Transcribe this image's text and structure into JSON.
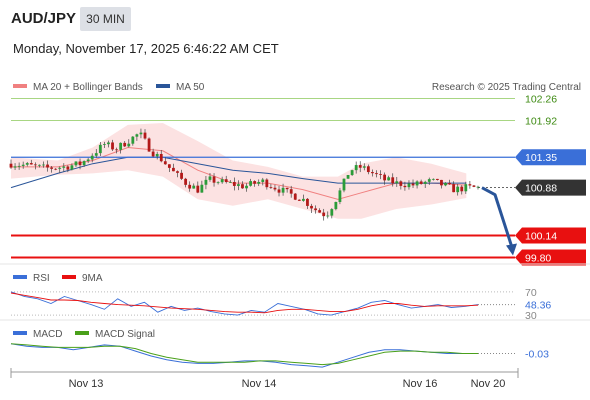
{
  "header": {
    "symbol": "AUD/JPY",
    "timeframe_button": "30 MIN",
    "timestamp": "Monday, November 17, 2025 6:46:22 AM CET"
  },
  "chart_data": [
    {
      "type": "candlestick",
      "panel": "price",
      "legend": [
        {
          "name": "MA 20 + Bollinger Bands",
          "color": "#f08080"
        },
        {
          "name": "MA 50",
          "color": "#2a5599"
        }
      ],
      "credit": "Research © 2025 Trading Central",
      "ylim": [
        99.73,
        102.39
      ],
      "levels": [
        {
          "value": 102.26,
          "label": "102.26",
          "kind": "target",
          "color": "#8cc85a"
        },
        {
          "value": 101.92,
          "label": "101.92",
          "kind": "target",
          "color": "#8cc85a"
        },
        {
          "value": 101.35,
          "label": "101.35",
          "kind": "pivot",
          "color": "#3a6fd8"
        },
        {
          "value": 100.88,
          "label": "100.88",
          "kind": "last_price",
          "color": "#333333"
        },
        {
          "value": 100.14,
          "label": "100.14",
          "kind": "support",
          "color": "#e81010"
        },
        {
          "value": 99.8,
          "label": "99.80",
          "kind": "support",
          "color": "#e81010"
        }
      ],
      "arrow": {
        "direction": "down",
        "from_value": 100.88,
        "to_value": 99.8,
        "color": "#2a5599"
      },
      "x_ticks": [
        "Nov 13",
        "Nov 14",
        "Nov 16",
        "Nov 20"
      ],
      "close_path": [
        [
          0,
          101.25
        ],
        [
          3,
          101.22
        ],
        [
          6,
          101.18
        ],
        [
          9,
          101.2
        ],
        [
          12,
          101.25
        ],
        [
          16,
          101.55
        ],
        [
          18,
          101.48
        ],
        [
          20,
          101.6
        ],
        [
          22,
          101.72
        ],
        [
          24,
          101.45
        ],
        [
          26,
          101.3
        ],
        [
          28,
          101.1
        ],
        [
          30,
          100.95
        ],
        [
          32,
          100.85
        ],
        [
          34,
          101.0
        ],
        [
          37,
          100.95
        ],
        [
          40,
          100.9
        ],
        [
          43,
          100.98
        ],
        [
          46,
          100.85
        ],
        [
          50,
          100.7
        ],
        [
          52,
          100.55
        ],
        [
          54,
          100.45
        ],
        [
          56,
          100.75
        ],
        [
          58,
          101.15
        ],
        [
          60,
          101.2
        ],
        [
          62,
          101.1
        ],
        [
          64,
          101.0
        ],
        [
          66,
          100.95
        ],
        [
          69,
          100.92
        ],
        [
          72,
          100.98
        ],
        [
          74,
          100.92
        ],
        [
          76,
          100.85
        ],
        [
          78,
          100.88
        ],
        [
          80,
          100.88
        ]
      ],
      "ma50_path": [
        [
          0,
          100.88
        ],
        [
          8,
          101.1
        ],
        [
          14,
          101.25
        ],
        [
          20,
          101.35
        ],
        [
          26,
          101.35
        ],
        [
          32,
          101.25
        ],
        [
          38,
          101.15
        ],
        [
          44,
          101.1
        ],
        [
          50,
          101.02
        ],
        [
          56,
          100.95
        ],
        [
          62,
          100.95
        ],
        [
          70,
          100.95
        ],
        [
          78,
          100.95
        ]
      ],
      "ma20_path": [
        [
          0,
          101.2
        ],
        [
          8,
          101.2
        ],
        [
          14,
          101.3
        ],
        [
          20,
          101.5
        ],
        [
          26,
          101.45
        ],
        [
          32,
          101.15
        ],
        [
          38,
          100.95
        ],
        [
          44,
          100.95
        ],
        [
          50,
          100.85
        ],
        [
          56,
          100.7
        ],
        [
          60,
          100.8
        ],
        [
          66,
          100.95
        ],
        [
          72,
          100.95
        ],
        [
          78,
          100.92
        ]
      ],
      "bb_upper": [
        [
          0,
          101.35
        ],
        [
          8,
          101.3
        ],
        [
          14,
          101.5
        ],
        [
          20,
          101.85
        ],
        [
          26,
          101.88
        ],
        [
          32,
          101.6
        ],
        [
          38,
          101.3
        ],
        [
          44,
          101.2
        ],
        [
          50,
          101.05
        ],
        [
          56,
          101.05
        ],
        [
          60,
          101.25
        ],
        [
          66,
          101.35
        ],
        [
          72,
          101.25
        ],
        [
          78,
          101.1
        ]
      ],
      "bb_lower": [
        [
          0,
          101.02
        ],
        [
          8,
          101.08
        ],
        [
          14,
          101.1
        ],
        [
          20,
          101.15
        ],
        [
          26,
          101.05
        ],
        [
          32,
          100.7
        ],
        [
          38,
          100.6
        ],
        [
          44,
          100.7
        ],
        [
          50,
          100.55
        ],
        [
          56,
          100.4
        ],
        [
          60,
          100.4
        ],
        [
          66,
          100.55
        ],
        [
          72,
          100.62
        ],
        [
          78,
          100.72
        ]
      ]
    },
    {
      "type": "line",
      "panel": "rsi",
      "legend": [
        {
          "name": "RSI",
          "color": "#3a6fd8"
        },
        {
          "name": "9MA",
          "color": "#e81010"
        }
      ],
      "ylim": [
        25,
        80
      ],
      "levels": [
        70,
        30
      ],
      "axis_labels": [
        "70",
        "30"
      ],
      "last_value": "48.36",
      "series": [
        {
          "name": "RSI",
          "color": "#3a6fd8",
          "values": [
            70,
            62,
            58,
            50,
            62,
            55,
            48,
            40,
            58,
            45,
            52,
            35,
            45,
            38,
            42,
            36,
            32,
            30,
            38,
            35,
            50,
            45,
            40,
            32,
            30,
            36,
            42,
            52,
            55,
            48,
            42,
            45,
            48,
            43,
            45,
            48
          ]
        },
        {
          "name": "9MA",
          "color": "#e81010",
          "values": [
            68,
            64,
            60,
            56,
            56,
            55,
            52,
            50,
            48,
            47,
            46,
            44,
            42,
            41,
            40,
            38,
            36,
            35,
            35,
            34,
            38,
            40,
            40,
            38,
            36,
            36,
            40,
            46,
            50,
            50,
            47,
            45,
            46,
            46,
            46,
            47
          ]
        }
      ]
    },
    {
      "type": "line",
      "panel": "macd",
      "legend": [
        {
          "name": "MACD",
          "color": "#3a6fd8"
        },
        {
          "name": "MACD Signal",
          "color": "#4aa01a"
        }
      ],
      "ylim": [
        -0.18,
        0.08
      ],
      "last_value": "-0.03",
      "series": [
        {
          "name": "MACD",
          "color": "#3a6fd8",
          "values": [
            0.05,
            0.03,
            0.02,
            0.02,
            0.0,
            0.02,
            0.04,
            0.03,
            -0.01,
            -0.05,
            -0.08,
            -0.1,
            -0.11,
            -0.11,
            -0.1,
            -0.09,
            -0.09,
            -0.1,
            -0.12,
            -0.13,
            -0.14,
            -0.1,
            -0.06,
            -0.02,
            0.0,
            0.0,
            -0.01,
            -0.02,
            -0.03,
            -0.03,
            -0.03
          ]
        },
        {
          "name": "MACD Signal",
          "color": "#4aa01a",
          "values": [
            0.05,
            0.04,
            0.03,
            0.02,
            0.02,
            0.02,
            0.03,
            0.03,
            0.01,
            -0.03,
            -0.06,
            -0.08,
            -0.1,
            -0.1,
            -0.1,
            -0.1,
            -0.09,
            -0.09,
            -0.1,
            -0.11,
            -0.12,
            -0.11,
            -0.08,
            -0.05,
            -0.02,
            -0.01,
            -0.01,
            -0.02,
            -0.02,
            -0.03,
            -0.03
          ]
        }
      ]
    }
  ]
}
